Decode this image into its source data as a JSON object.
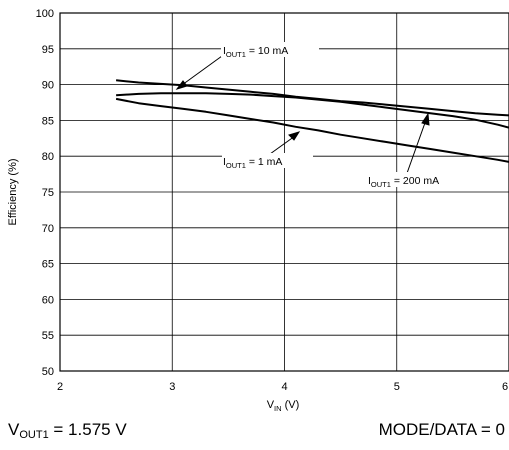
{
  "chart_data": {
    "type": "line",
    "xlabel": {
      "main": "V",
      "sub": "IN",
      "unit": " (V)"
    },
    "ylabel": "Efficiency (%)",
    "xlim": [
      2,
      6
    ],
    "ylim": [
      50,
      100
    ],
    "x_ticks": [
      "2",
      "3",
      "4",
      "5",
      "6"
    ],
    "y_ticks": [
      "50",
      "55",
      "60",
      "65",
      "70",
      "75",
      "80",
      "85",
      "90",
      "95",
      "100"
    ],
    "grid": true,
    "series": [
      {
        "name": "I_OUT1 = 10 mA",
        "x": [
          2.5,
          2.7,
          2.9,
          3.1,
          3.3,
          3.5,
          3.7,
          3.9,
          4.1,
          4.3,
          4.5,
          4.7,
          4.9,
          5.1,
          5.3,
          5.5,
          5.7,
          5.9,
          6.0
        ],
        "y": [
          90.6,
          90.3,
          90.1,
          89.9,
          89.6,
          89.3,
          89.0,
          88.7,
          88.3,
          88.0,
          87.7,
          87.5,
          87.2,
          86.9,
          86.6,
          86.3,
          86.0,
          85.8,
          85.7
        ]
      },
      {
        "name": "I_OUT1 = 200 mA",
        "x": [
          2.5,
          2.7,
          2.9,
          3.1,
          3.3,
          3.5,
          3.7,
          3.9,
          4.1,
          4.3,
          4.5,
          4.7,
          4.9,
          5.1,
          5.3,
          5.5,
          5.7,
          5.9,
          6.0
        ],
        "y": [
          88.5,
          88.7,
          88.8,
          88.8,
          88.8,
          88.7,
          88.6,
          88.4,
          88.2,
          87.9,
          87.6,
          87.2,
          86.8,
          86.4,
          86.0,
          85.6,
          85.1,
          84.4,
          84.0
        ]
      },
      {
        "name": "I_OUT1 = 1 mA",
        "x": [
          2.5,
          2.7,
          2.9,
          3.1,
          3.3,
          3.5,
          3.7,
          3.9,
          4.1,
          4.3,
          4.5,
          4.7,
          4.9,
          5.1,
          5.3,
          5.5,
          5.7,
          5.9,
          6.0
        ],
        "y": [
          88.0,
          87.4,
          87.0,
          86.6,
          86.2,
          85.7,
          85.2,
          84.7,
          84.1,
          83.6,
          83.0,
          82.5,
          82.0,
          81.5,
          81.0,
          80.5,
          80.0,
          79.5,
          79.2
        ]
      }
    ],
    "annotations": [
      {
        "main": "I",
        "sub": "OUT1",
        "text": " = 10 mA"
      },
      {
        "main": "I",
        "sub": "OUT1",
        "text": " = 1 mA"
      },
      {
        "main": "I",
        "sub": "OUT1",
        "text": " = 200 mA"
      }
    ]
  },
  "footer": {
    "left": {
      "main": "V",
      "sub": "OUT1",
      "text": " = 1.575 V"
    },
    "right": "MODE/DATA = 0"
  }
}
